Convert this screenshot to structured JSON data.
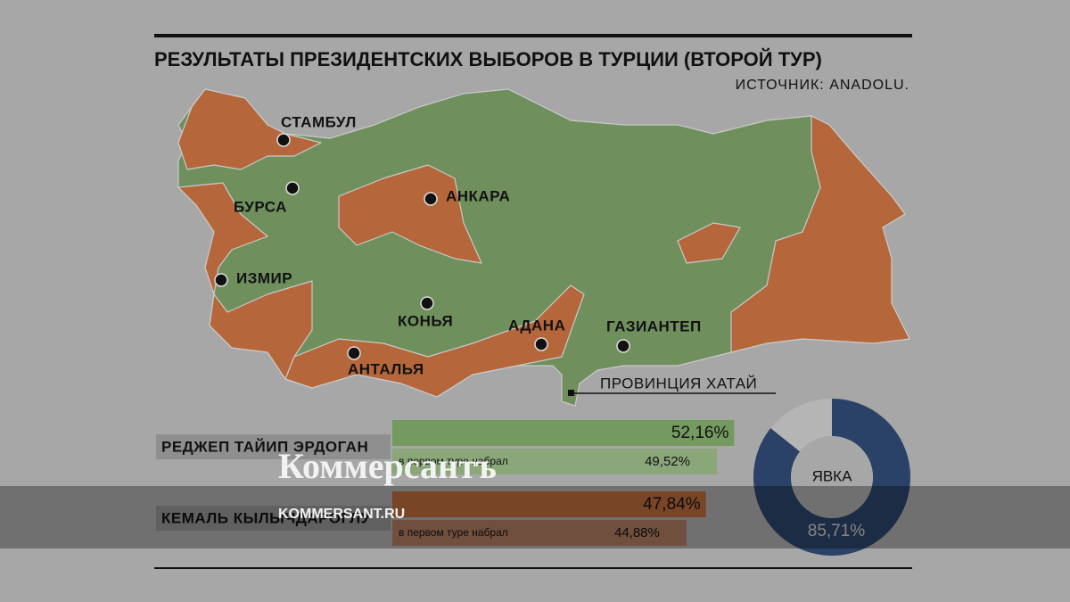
{
  "title": "РЕЗУЛЬТАТЫ ПРЕЗИДЕНТСКИХ ВЫБОРОВ В ТУРЦИИ (ВТОРОЙ ТУР)",
  "source": "ИСТОЧНИК: ANADOLU.",
  "map": {
    "cities": [
      "СТАМБУЛ",
      "БУРСА",
      "АНКАРА",
      "ИЗМИР",
      "КОНЬЯ",
      "АДАНА",
      "ГАЗИАНТЕП",
      "АНТАЛЬЯ"
    ],
    "annotation": "ПРОВИНЦИЯ ХАТАЙ"
  },
  "candidates": [
    {
      "name": "РЕДЖЕП ТАЙИП ЭРДОГАН",
      "result": 52.16,
      "result_label": "52,16%",
      "first_round_note": "в первом туре набрал",
      "first_round": 49.52,
      "first_round_label": "49,52%",
      "color": "#749a60",
      "first_round_color": "#8ba77a"
    },
    {
      "name": "КЕМАЛЬ КЫЛЫЧДАРОГЛУ",
      "result": 47.84,
      "result_label": "47,84%",
      "first_round_note": "в первом туре набрал",
      "first_round": 44.88,
      "first_round_label": "44,88%",
      "color": "#b5673b",
      "first_round_color": "#a8775e"
    }
  ],
  "turnout": {
    "label": "ЯВКА",
    "value": 85.71,
    "value_label": "85,71%",
    "color": "#2b4268",
    "rest_color": "#b5b5b5"
  },
  "watermark": {
    "brand": "Коммерсантъ",
    "site": "KOMMERSANT.RU"
  }
}
